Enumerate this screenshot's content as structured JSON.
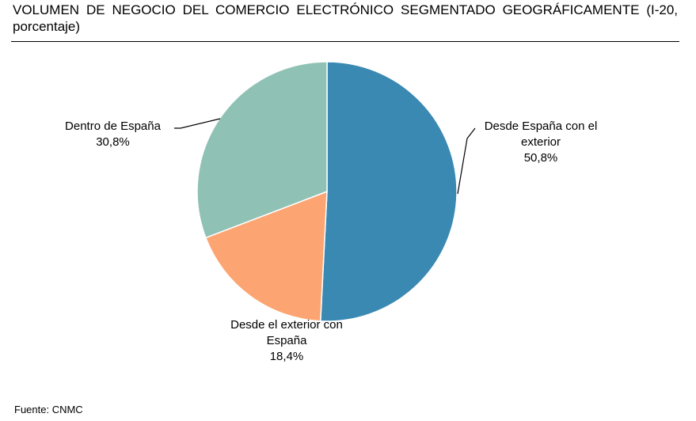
{
  "chart_data": {
    "type": "pie",
    "title": "VOLUMEN DE NEGOCIO DEL COMERCIO ELECTRÓNICO SEGMENTADO GEOGRÁFICAMENTE (I-20, porcentaje)",
    "categories": [
      "Desde España con el exterior",
      "Desde el exterior con España",
      "Dentro de España"
    ],
    "values": [
      50.8,
      18.4,
      30.8
    ],
    "value_labels": [
      "50,8%",
      "18,4%",
      "30,8%"
    ],
    "colors": [
      "#3a89b3",
      "#fca572",
      "#8fc1b5"
    ],
    "source": "Fuente: CNMC"
  }
}
